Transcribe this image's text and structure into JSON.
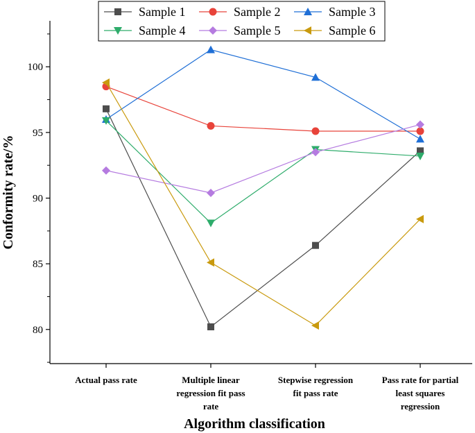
{
  "chart_data": {
    "type": "line",
    "xlabel": "Algorithm classification",
    "ylabel": "Conformity rate/%",
    "categories": [
      [
        "Actual pass rate"
      ],
      [
        "Multiple linear",
        "regression fit pass",
        "rate"
      ],
      [
        "Stepwise regression",
        "fit pass rate"
      ],
      [
        "Pass rate for partial",
        "least squares",
        "regression"
      ]
    ],
    "yticks": [
      "80",
      "85",
      "90",
      "95",
      "100"
    ],
    "ylim": [
      77.4,
      103.5
    ],
    "grid": false,
    "legend_position": "top",
    "series": [
      {
        "name": "Sample 1",
        "color": "#4d4d4d",
        "marker": "square",
        "values": [
          96.8,
          80.2,
          86.4,
          93.6
        ]
      },
      {
        "name": "Sample 2",
        "color": "#e8433a",
        "marker": "circle",
        "values": [
          98.5,
          95.5,
          95.1,
          95.1
        ]
      },
      {
        "name": "Sample 3",
        "color": "#1f6fd6",
        "marker": "triangle-up",
        "values": [
          96.0,
          101.3,
          99.2,
          94.5
        ]
      },
      {
        "name": "Sample 4",
        "color": "#2eac6b",
        "marker": "triangle-down",
        "values": [
          95.9,
          88.1,
          93.7,
          93.2
        ]
      },
      {
        "name": "Sample 5",
        "color": "#b57be0",
        "marker": "diamond",
        "values": [
          92.1,
          90.4,
          93.5,
          95.6
        ]
      },
      {
        "name": "Sample 6",
        "color": "#c99a0e",
        "marker": "triangle-left",
        "values": [
          98.8,
          85.1,
          80.3,
          88.4
        ]
      }
    ]
  }
}
